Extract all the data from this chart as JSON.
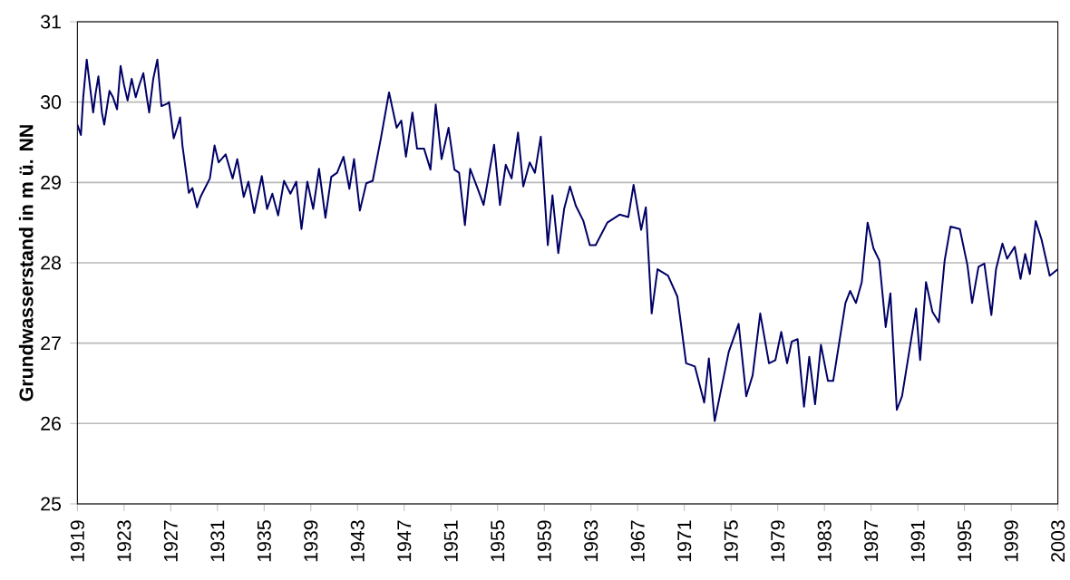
{
  "chart_data": {
    "type": "line",
    "ylabel": "Grundwasserstand in m ü. NN",
    "xlim": [
      1919,
      2003
    ],
    "ylim": [
      25,
      31
    ],
    "xticks": [
      1919,
      1923,
      1927,
      1931,
      1935,
      1939,
      1943,
      1947,
      1951,
      1955,
      1959,
      1963,
      1967,
      1971,
      1975,
      1979,
      1983,
      1987,
      1991,
      1995,
      1999,
      2003
    ],
    "yticks": [
      25,
      26,
      27,
      28,
      29,
      30,
      31
    ],
    "grid": "y",
    "marker": "none",
    "line_style": "solid",
    "series": [
      {
        "color": "#000066",
        "x": [
          1919.0,
          1919.3,
          1919.5,
          1919.8,
          1920.0,
          1920.35,
          1920.55,
          1920.8,
          1921.1,
          1921.3,
          1921.75,
          1922.05,
          1922.4,
          1922.7,
          1923.0,
          1923.3,
          1923.65,
          1924.0,
          1924.3,
          1924.65,
          1924.95,
          1925.15,
          1925.5,
          1925.85,
          1926.2,
          1926.7,
          1926.85,
          1927.25,
          1927.55,
          1927.8,
          1928.0,
          1928.55,
          1928.85,
          1929.25,
          1929.55,
          1930.35,
          1930.75,
          1931.1,
          1931.7,
          1932.3,
          1932.7,
          1933.25,
          1933.65,
          1934.15,
          1934.8,
          1935.25,
          1935.7,
          1936.2,
          1936.7,
          1937.25,
          1937.75,
          1938.2,
          1938.7,
          1939.2,
          1939.7,
          1940.25,
          1940.75,
          1941.25,
          1941.8,
          1942.3,
          1942.7,
          1943.2,
          1943.75,
          1944.3,
          1945.0,
          1945.7,
          1946.35,
          1946.75,
          1947.15,
          1947.7,
          1948.1,
          1948.7,
          1949.25,
          1949.7,
          1950.2,
          1950.8,
          1951.3,
          1951.7,
          1952.2,
          1952.65,
          1953.3,
          1953.8,
          1954.7,
          1955.2,
          1955.7,
          1956.2,
          1956.75,
          1957.2,
          1957.75,
          1958.2,
          1958.7,
          1959.3,
          1959.7,
          1960.2,
          1960.7,
          1961.2,
          1961.7,
          1962.35,
          1962.9,
          1963.4,
          1964.4,
          1965.45,
          1966.2,
          1966.65,
          1967.3,
          1967.7,
          1967.95,
          1968.2,
          1968.7,
          1969.6,
          1970.4,
          1971.15,
          1971.9,
          1972.7,
          1973.1,
          1973.6,
          1974.8,
          1975.65,
          1976.3,
          1976.85,
          1977.5,
          1978.25,
          1978.8,
          1979.3,
          1979.8,
          1980.2,
          1980.7,
          1981.25,
          1981.7,
          1982.2,
          1982.7,
          1983.3,
          1983.75,
          1984.8,
          1985.2,
          1985.7,
          1986.2,
          1986.7,
          1987.2,
          1987.7,
          1988.25,
          1988.65,
          1989.2,
          1989.65,
          1990.6,
          1990.85,
          1991.2,
          1991.7,
          1992.25,
          1992.8,
          1993.3,
          1993.8,
          1994.6,
          1995.25,
          1995.65,
          1996.2,
          1996.7,
          1997.3,
          1997.7,
          1998.25,
          1998.65,
          1999.3,
          1999.8,
          2000.2,
          2000.6,
          2001.1,
          2001.6,
          2002.3,
          2003.0
        ],
        "values": [
          29.72,
          29.59,
          30.06,
          30.53,
          30.29,
          29.87,
          30.1,
          30.32,
          29.87,
          29.72,
          30.14,
          30.06,
          29.91,
          30.45,
          30.21,
          30.02,
          30.29,
          30.06,
          30.21,
          30.36,
          30.06,
          29.87,
          30.29,
          30.53,
          29.95,
          29.98,
          30.0,
          29.55,
          29.68,
          29.81,
          29.46,
          28.87,
          28.93,
          28.69,
          28.82,
          29.05,
          29.46,
          29.25,
          29.35,
          29.05,
          29.29,
          28.82,
          29.01,
          28.62,
          29.08,
          28.67,
          28.86,
          28.59,
          29.02,
          28.86,
          29.01,
          28.42,
          29.01,
          28.67,
          29.17,
          28.56,
          29.07,
          29.12,
          29.32,
          28.92,
          29.29,
          28.65,
          28.99,
          29.02,
          29.55,
          30.12,
          29.68,
          29.77,
          29.32,
          29.87,
          29.42,
          29.42,
          29.16,
          29.97,
          29.29,
          29.68,
          29.16,
          29.12,
          28.47,
          29.17,
          28.92,
          28.72,
          29.47,
          28.72,
          29.22,
          29.05,
          29.62,
          28.95,
          29.25,
          29.12,
          29.57,
          28.22,
          28.84,
          28.12,
          28.67,
          28.95,
          28.71,
          28.52,
          28.22,
          28.22,
          28.5,
          28.6,
          28.57,
          28.97,
          28.41,
          28.69,
          28.03,
          27.37,
          27.92,
          27.84,
          27.58,
          26.75,
          26.71,
          26.26,
          26.81,
          26.03,
          26.89,
          27.24,
          26.34,
          26.6,
          27.37,
          26.75,
          26.79,
          27.14,
          26.75,
          27.02,
          27.05,
          26.21,
          26.83,
          26.24,
          26.98,
          26.53,
          26.53,
          27.5,
          27.65,
          27.5,
          27.76,
          28.5,
          28.18,
          28.03,
          27.2,
          27.62,
          26.17,
          26.34,
          27.2,
          27.43,
          26.79,
          27.76,
          27.39,
          27.26,
          28.03,
          28.45,
          28.42,
          27.97,
          27.5,
          27.95,
          27.99,
          27.35,
          27.92,
          28.24,
          28.05,
          28.2,
          27.8,
          28.11,
          27.86,
          28.52,
          28.29,
          27.84,
          27.92
        ]
      }
    ]
  }
}
